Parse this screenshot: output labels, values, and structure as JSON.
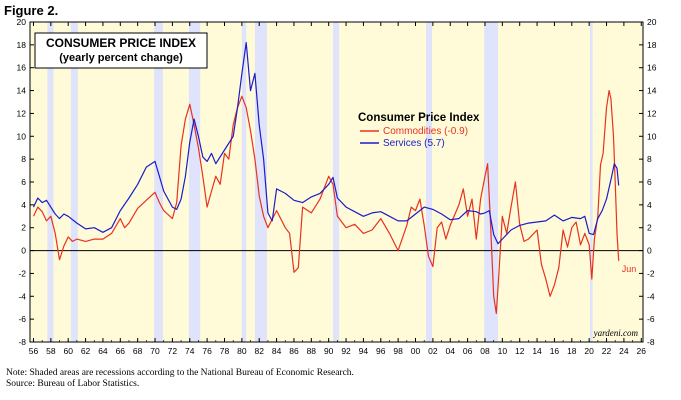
{
  "figure_label": "Figure 2.",
  "notes": [
    "Note: Shaded areas are recessions according to the National Bureau of Economic Research.",
    "Source: Bureau of Labor Statistics."
  ],
  "chart_data": {
    "type": "line",
    "title": "CONSUMER PRICE INDEX",
    "subtitle": "(yearly percent change)",
    "legend_title": "Consumer Price Index",
    "legend_position": "upper-middle",
    "watermark": "yardeni.com",
    "end_label": "Jun",
    "xlim": [
      1955.6,
      2026.2
    ],
    "ylim": [
      -8,
      20
    ],
    "x_ticks": [
      1956,
      1958,
      1960,
      1962,
      1964,
      1966,
      1968,
      1970,
      1972,
      1974,
      1976,
      1978,
      1980,
      1982,
      1984,
      1986,
      1988,
      1990,
      1992,
      1994,
      1996,
      1998,
      2000,
      2002,
      2004,
      2006,
      2008,
      2010,
      2012,
      2014,
      2016,
      2018,
      2020,
      2022,
      2024,
      2026
    ],
    "x_tick_labels": [
      "56",
      "58",
      "60",
      "62",
      "64",
      "66",
      "68",
      "70",
      "72",
      "74",
      "76",
      "78",
      "80",
      "82",
      "84",
      "86",
      "88",
      "90",
      "92",
      "94",
      "96",
      "98",
      "00",
      "02",
      "04",
      "06",
      "08",
      "10",
      "12",
      "14",
      "16",
      "18",
      "20",
      "22",
      "24",
      "26"
    ],
    "y_ticks": [
      -8,
      -6,
      -4,
      -2,
      0,
      2,
      4,
      6,
      8,
      10,
      12,
      14,
      16,
      18,
      20
    ],
    "y_tick_labels": [
      "-8",
      "-6",
      "-4",
      "-2",
      "0",
      "2",
      "4",
      "6",
      "8",
      "10",
      "12",
      "14",
      "16",
      "18",
      "20"
    ],
    "background_color": "#fffbd9",
    "recession_color": "#dfe3fb",
    "recessions": [
      [
        1957.6,
        1958.3
      ],
      [
        1960.3,
        1961.1
      ],
      [
        1969.9,
        1970.9
      ],
      [
        1973.9,
        1975.2
      ],
      [
        1980.0,
        1980.5
      ],
      [
        1981.5,
        1982.9
      ],
      [
        1990.5,
        1991.2
      ],
      [
        2001.2,
        2001.9
      ],
      [
        2007.9,
        2009.5
      ],
      [
        2020.1,
        2020.4
      ]
    ],
    "series": [
      {
        "name": "Commodities (-0.9)",
        "color": "#e8321e",
        "x": [
          1956.0,
          1956.5,
          1957.0,
          1957.5,
          1958.0,
          1958.5,
          1959.0,
          1959.5,
          1960.0,
          1960.5,
          1961.0,
          1962.0,
          1963.0,
          1964.0,
          1965.0,
          1966.0,
          1966.5,
          1967.0,
          1968.0,
          1969.0,
          1970.0,
          1970.5,
          1971.0,
          1972.0,
          1972.5,
          1973.0,
          1973.5,
          1974.0,
          1974.5,
          1975.0,
          1975.5,
          1976.0,
          1976.5,
          1977.0,
          1977.5,
          1978.0,
          1978.5,
          1979.0,
          1979.5,
          1980.0,
          1980.5,
          1981.0,
          1981.5,
          1982.0,
          1982.5,
          1983.0,
          1984.0,
          1985.0,
          1985.5,
          1986.0,
          1986.5,
          1987.0,
          1988.0,
          1989.0,
          1990.0,
          1990.5,
          1991.0,
          1992.0,
          1993.0,
          1994.0,
          1995.0,
          1996.0,
          1997.0,
          1998.0,
          1999.0,
          1999.5,
          2000.0,
          2000.5,
          2001.0,
          2001.5,
          2002.0,
          2002.5,
          2003.0,
          2003.5,
          2004.0,
          2005.0,
          2005.5,
          2006.0,
          2006.5,
          2007.0,
          2007.5,
          2008.0,
          2008.3,
          2008.6,
          2009.0,
          2009.3,
          2009.6,
          2010.0,
          2010.5,
          2011.0,
          2011.5,
          2012.0,
          2012.5,
          2013.0,
          2014.0,
          2014.5,
          2015.0,
          2015.5,
          2016.0,
          2016.5,
          2017.0,
          2017.5,
          2018.0,
          2018.5,
          2019.0,
          2019.5,
          2020.0,
          2020.3,
          2020.6,
          2021.0,
          2021.3,
          2021.6,
          2022.0,
          2022.3,
          2022.5,
          2022.8,
          2023.0,
          2023.2,
          2023.4
        ],
        "y": [
          3.0,
          3.8,
          3.4,
          2.6,
          3.0,
          1.5,
          -0.8,
          0.4,
          1.2,
          0.8,
          1.0,
          0.8,
          1.0,
          1.0,
          1.5,
          2.8,
          2.0,
          2.4,
          3.7,
          4.4,
          5.1,
          4.2,
          3.5,
          2.8,
          4.2,
          9.2,
          11.5,
          12.8,
          11.0,
          9.0,
          6.5,
          3.8,
          5.2,
          6.5,
          5.8,
          8.5,
          8.0,
          11.0,
          12.5,
          13.5,
          12.5,
          10.5,
          8.0,
          4.8,
          3.0,
          2.0,
          3.5,
          2.0,
          1.5,
          -1.9,
          -1.5,
          3.8,
          3.3,
          4.5,
          6.5,
          5.8,
          3.0,
          2.0,
          2.3,
          1.5,
          1.8,
          2.8,
          1.5,
          0.0,
          2.2,
          3.8,
          3.5,
          4.5,
          2.2,
          -0.5,
          -1.4,
          2.0,
          2.5,
          1.0,
          2.2,
          4.0,
          5.4,
          3.0,
          4.5,
          1.0,
          4.5,
          6.5,
          7.6,
          3.0,
          -4.0,
          -5.5,
          -2.0,
          3.0,
          1.5,
          3.8,
          6.0,
          2.3,
          0.8,
          1.0,
          1.8,
          -1.2,
          -2.5,
          -4.0,
          -3.0,
          -1.5,
          1.8,
          0.3,
          2.0,
          2.5,
          0.5,
          1.5,
          0.5,
          -2.5,
          1.0,
          3.0,
          7.5,
          8.5,
          12.5,
          14.0,
          13.3,
          10.0,
          6.0,
          1.5,
          -0.9
        ]
      },
      {
        "name": "Services (5.7)",
        "color": "#1c1cc8",
        "x": [
          1956.0,
          1956.5,
          1957.0,
          1957.5,
          1958.0,
          1958.5,
          1959.0,
          1959.5,
          1960.0,
          1961.0,
          1962.0,
          1963.0,
          1964.0,
          1965.0,
          1966.0,
          1967.0,
          1968.0,
          1969.0,
          1970.0,
          1970.5,
          1971.0,
          1972.0,
          1972.5,
          1973.0,
          1973.5,
          1974.0,
          1974.5,
          1975.0,
          1975.5,
          1976.0,
          1976.5,
          1977.0,
          1978.0,
          1979.0,
          1979.5,
          1980.0,
          1980.5,
          1981.0,
          1981.5,
          1982.0,
          1982.5,
          1983.0,
          1983.5,
          1984.0,
          1985.0,
          1986.0,
          1987.0,
          1988.0,
          1989.0,
          1990.0,
          1990.5,
          1991.0,
          1992.0,
          1993.0,
          1994.0,
          1995.0,
          1996.0,
          1997.0,
          1998.0,
          1999.0,
          2000.0,
          2001.0,
          2002.0,
          2003.0,
          2004.0,
          2005.0,
          2006.0,
          2007.0,
          2007.5,
          2008.0,
          2008.5,
          2009.0,
          2009.5,
          2010.0,
          2011.0,
          2012.0,
          2013.0,
          2014.0,
          2015.0,
          2016.0,
          2017.0,
          2018.0,
          2019.0,
          2019.5,
          2020.0,
          2020.5,
          2021.0,
          2021.5,
          2022.0,
          2022.3,
          2022.6,
          2022.9,
          2023.2,
          2023.4
        ],
        "y": [
          3.8,
          4.6,
          4.2,
          4.4,
          3.8,
          3.2,
          2.8,
          3.2,
          3.0,
          2.4,
          1.9,
          2.0,
          1.6,
          2.0,
          3.5,
          4.6,
          5.8,
          7.3,
          7.8,
          6.5,
          5.2,
          3.8,
          3.6,
          4.5,
          6.5,
          9.5,
          11.5,
          10.0,
          8.2,
          7.8,
          8.5,
          7.6,
          8.8,
          10.0,
          12.5,
          15.5,
          18.2,
          14.0,
          15.5,
          11.0,
          8.0,
          3.3,
          2.6,
          5.4,
          5.0,
          4.4,
          4.2,
          4.7,
          5.0,
          5.8,
          6.4,
          4.6,
          3.8,
          3.4,
          3.0,
          3.3,
          3.4,
          3.0,
          2.6,
          2.6,
          3.2,
          3.8,
          3.6,
          3.2,
          2.7,
          2.8,
          3.5,
          3.4,
          3.2,
          3.3,
          3.5,
          1.4,
          0.6,
          1.0,
          1.8,
          2.2,
          2.4,
          2.5,
          2.6,
          3.1,
          2.6,
          2.9,
          2.8,
          3.0,
          1.5,
          1.4,
          2.8,
          3.5,
          4.5,
          5.5,
          6.5,
          7.6,
          7.2,
          5.7
        ]
      }
    ]
  }
}
